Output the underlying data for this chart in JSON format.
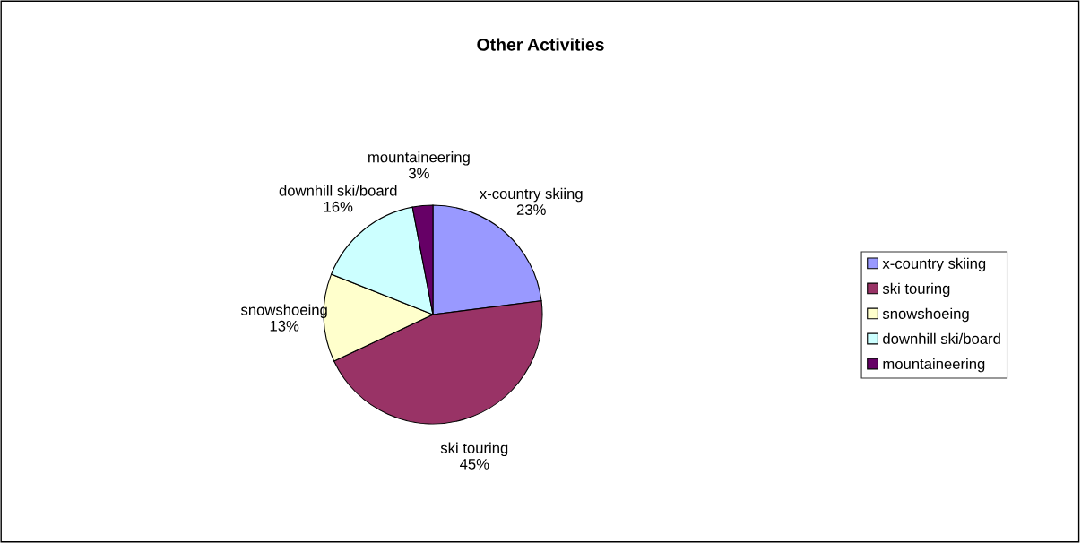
{
  "chart_data": {
    "type": "pie",
    "title": "Other Activities",
    "categories": [
      "x-country skiing",
      "ski touring",
      "snowshoeing",
      "downhill ski/board",
      "mountaineering"
    ],
    "values": [
      23,
      45,
      13,
      16,
      3
    ],
    "colors": [
      "#9999ff",
      "#993366",
      "#ffffcc",
      "#ccffff",
      "#660066"
    ],
    "value_labels": [
      "23%",
      "45%",
      "13%",
      "16%",
      "3%"
    ],
    "legend": "right"
  }
}
